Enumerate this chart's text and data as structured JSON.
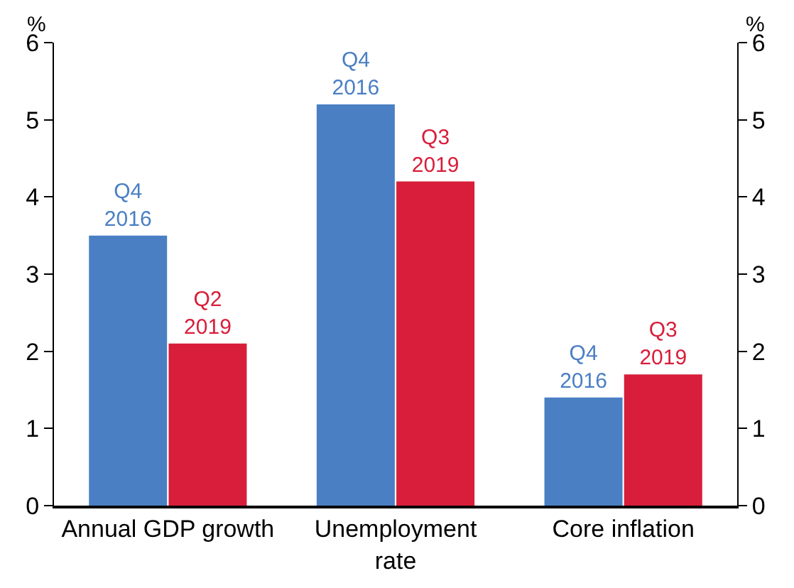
{
  "chart_data": {
    "type": "bar",
    "categories": [
      "Annual GDP growth",
      "Unemployment\nrate",
      "Core inflation"
    ],
    "series": [
      {
        "color": "#4a7fc4",
        "values": [
          3.5,
          5.2,
          1.4
        ],
        "value_labels": [
          "Q4\n2016",
          "Q4\n2016",
          "Q4\n2016"
        ]
      },
      {
        "color": "#d81e3a",
        "values": [
          2.1,
          4.2,
          1.7
        ],
        "value_labels": [
          "Q2\n2019",
          "Q3\n2019",
          "Q3\n2019"
        ]
      }
    ],
    "ylabel": "%",
    "y2label": "%",
    "ylim": [
      0,
      6
    ],
    "yticks": [
      0,
      1,
      2,
      3,
      4,
      5,
      6
    ],
    "y2lim": [
      0,
      6
    ],
    "y2ticks": [
      0,
      1,
      2,
      3,
      4,
      5,
      6
    ],
    "grid": false
  }
}
